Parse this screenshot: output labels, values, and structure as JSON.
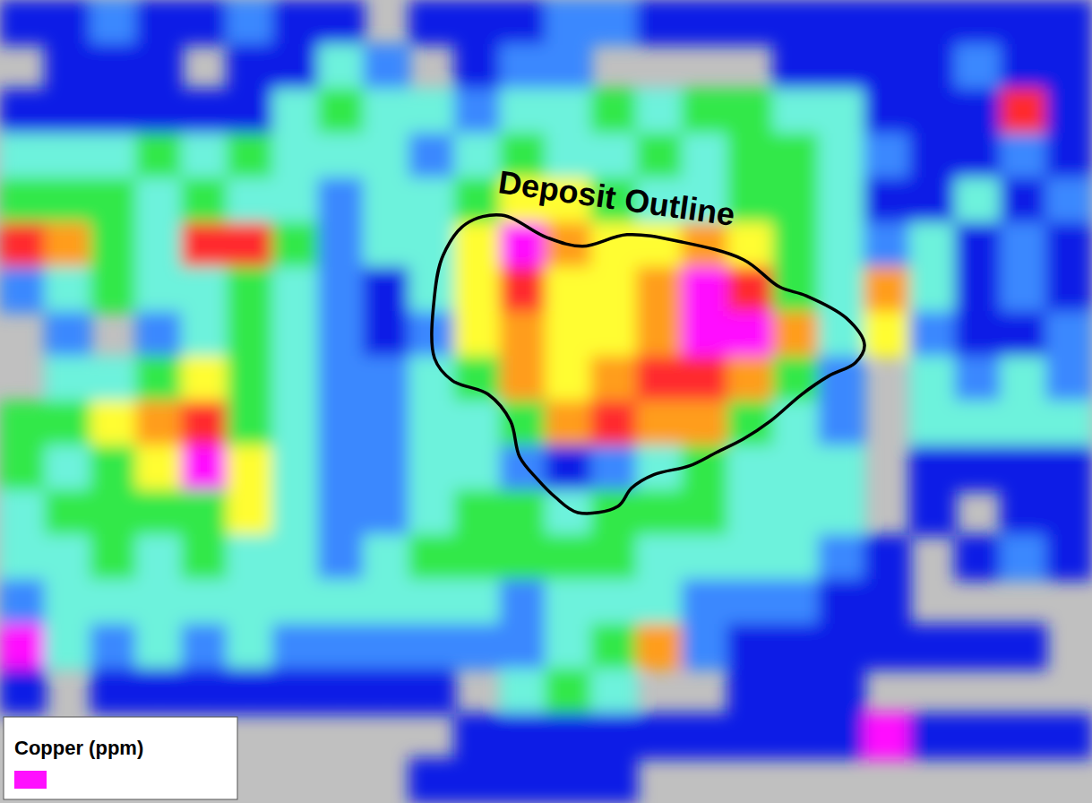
{
  "chart_data": {
    "type": "heatmap",
    "tick_labels": false,
    "color_label": "Copper (ppm)",
    "color_range": [
      20,
      300
    ],
    "annotations": [
      {
        "text": "Deposit Outline"
      }
    ],
    "deposit_outline": {
      "x": [
        10.24,
        11.02,
        12.01,
        12.8,
        13.78,
        14.96,
        16.34,
        17.13,
        17.72,
        18.6,
        19.0,
        18.8,
        18.21,
        17.62,
        16.93,
        16.34,
        15.75,
        15.16,
        14.37,
        13.88,
        13.58,
        12.7,
        12.2,
        11.81,
        11.42,
        11.22,
        10.73,
        9.94,
        9.55,
        9.55,
        9.74
      ],
      "y": [
        5.02,
        4.82,
        5.32,
        5.52,
        5.26,
        5.42,
        5.82,
        6.43,
        6.63,
        7.13,
        7.73,
        8.13,
        8.43,
        8.84,
        9.44,
        9.84,
        10.14,
        10.44,
        10.64,
        10.94,
        11.35,
        11.49,
        11.14,
        10.74,
        10.24,
        9.44,
        8.84,
        8.53,
        8.03,
        6.63,
        5.72
      ]
    },
    "cells": [
      [
        20,
        20,
        40,
        20,
        20,
        40,
        20,
        20,
        null,
        20,
        20,
        20,
        40,
        40,
        20,
        20,
        20,
        20,
        20,
        20,
        20,
        20,
        20,
        20
      ],
      [
        null,
        20,
        20,
        20,
        null,
        20,
        20,
        60,
        40,
        null,
        20,
        40,
        40,
        null,
        null,
        null,
        null,
        20,
        20,
        20,
        20,
        40,
        20,
        20
      ],
      [
        20,
        20,
        20,
        20,
        20,
        20,
        60,
        90,
        60,
        60,
        40,
        60,
        60,
        90,
        60,
        90,
        90,
        60,
        60,
        20,
        20,
        20,
        220,
        20
      ],
      [
        60,
        60,
        60,
        90,
        60,
        90,
        60,
        60,
        60,
        40,
        60,
        90,
        60,
        60,
        90,
        60,
        90,
        90,
        60,
        40,
        20,
        20,
        40,
        20
      ],
      [
        90,
        90,
        90,
        60,
        90,
        60,
        60,
        40,
        60,
        60,
        90,
        130,
        130,
        90,
        60,
        60,
        90,
        90,
        60,
        20,
        20,
        60,
        20,
        40
      ],
      [
        220,
        170,
        90,
        60,
        220,
        220,
        90,
        40,
        60,
        60,
        130,
        300,
        170,
        130,
        130,
        170,
        130,
        90,
        60,
        40,
        60,
        20,
        40,
        20
      ],
      [
        40,
        60,
        90,
        60,
        60,
        90,
        60,
        40,
        20,
        60,
        130,
        220,
        130,
        130,
        170,
        300,
        220,
        90,
        60,
        170,
        60,
        20,
        40,
        20
      ],
      [
        null,
        40,
        null,
        40,
        60,
        90,
        60,
        40,
        20,
        40,
        130,
        170,
        130,
        130,
        170,
        300,
        300,
        170,
        60,
        130,
        40,
        20,
        20,
        40
      ],
      [
        null,
        60,
        60,
        90,
        130,
        90,
        60,
        40,
        40,
        60,
        90,
        170,
        130,
        170,
        220,
        220,
        170,
        90,
        40,
        null,
        60,
        40,
        60,
        40
      ],
      [
        90,
        90,
        130,
        170,
        220,
        90,
        60,
        40,
        40,
        60,
        60,
        90,
        170,
        220,
        170,
        170,
        90,
        60,
        40,
        null,
        60,
        60,
        60,
        60
      ],
      [
        90,
        60,
        90,
        130,
        300,
        130,
        60,
        40,
        40,
        60,
        60,
        40,
        20,
        40,
        60,
        90,
        60,
        60,
        60,
        null,
        20,
        20,
        20,
        20
      ],
      [
        60,
        90,
        90,
        90,
        90,
        130,
        60,
        40,
        40,
        60,
        90,
        90,
        60,
        90,
        90,
        90,
        60,
        60,
        60,
        null,
        20,
        null,
        20,
        20
      ],
      [
        60,
        60,
        90,
        60,
        90,
        60,
        60,
        40,
        60,
        90,
        90,
        90,
        90,
        90,
        60,
        60,
        60,
        60,
        40,
        20,
        null,
        20,
        40,
        20
      ],
      [
        40,
        60,
        60,
        60,
        60,
        60,
        60,
        60,
        60,
        60,
        60,
        40,
        60,
        60,
        60,
        40,
        40,
        40,
        20,
        20,
        null,
        null,
        null,
        null
      ],
      [
        300,
        60,
        40,
        60,
        40,
        60,
        40,
        40,
        40,
        40,
        40,
        40,
        60,
        90,
        170,
        40,
        20,
        20,
        20,
        20,
        20,
        20,
        20,
        null
      ],
      [
        20,
        null,
        20,
        20,
        20,
        20,
        20,
        20,
        20,
        20,
        null,
        60,
        90,
        60,
        null,
        null,
        20,
        20,
        20,
        null,
        null,
        null,
        null,
        null
      ],
      [
        null,
        null,
        null,
        null,
        null,
        null,
        null,
        null,
        null,
        null,
        20,
        20,
        20,
        20,
        20,
        20,
        20,
        20,
        20,
        300,
        20,
        20,
        20,
        20
      ],
      [
        null,
        null,
        null,
        null,
        null,
        null,
        null,
        null,
        null,
        20,
        20,
        20,
        20,
        20,
        null,
        null,
        null,
        null,
        null,
        null,
        null,
        null,
        null,
        null
      ]
    ]
  }
}
